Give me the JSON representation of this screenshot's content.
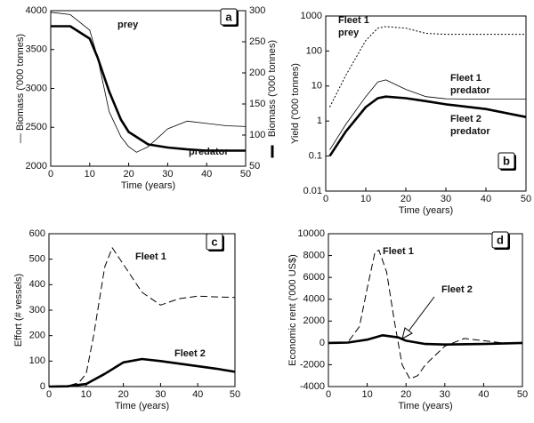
{
  "chart_data": [
    {
      "type": "line",
      "panel_label": "a",
      "x_label": "Time (years)",
      "y_label": "— Biomass ('000 tonnes)",
      "y2_label": "Biomass ('000 tonnes)",
      "xlim": [
        0,
        50
      ],
      "xticks": [
        0,
        10,
        20,
        30,
        40,
        50
      ],
      "ylim": [
        2000,
        4000
      ],
      "yticks": [
        2000,
        2500,
        3000,
        3500,
        4000
      ],
      "y2lim": [
        50,
        300
      ],
      "y2ticks": [
        50,
        100,
        150,
        200,
        250,
        300
      ],
      "log_y": false,
      "annotations": [
        "prey",
        "predator"
      ],
      "series": [
        {
          "name": "prey",
          "color": "#000000",
          "style": "thin",
          "x": [
            0,
            5,
            10,
            12,
            15,
            18,
            20,
            22,
            25,
            30,
            35,
            40,
            45,
            50
          ],
          "values": [
            3980,
            3950,
            3750,
            3400,
            2700,
            2380,
            2250,
            2180,
            2250,
            2480,
            2580,
            2550,
            2520,
            2510
          ]
        },
        {
          "name": "predator",
          "color": "#000000",
          "style": "thick",
          "axis": "y2",
          "x": [
            0,
            5,
            10,
            12,
            15,
            18,
            20,
            25,
            30,
            35,
            40,
            45,
            50
          ],
          "values": [
            275,
            275,
            255,
            225,
            170,
            125,
            105,
            85,
            80,
            77,
            75,
            75,
            75
          ]
        }
      ]
    },
    {
      "type": "line",
      "panel_label": "b",
      "x_label": "Time (years)",
      "y_label": "Yield ('000 tonnes)",
      "xlim": [
        0,
        50
      ],
      "xticks": [
        0,
        10,
        20,
        30,
        40,
        50
      ],
      "ylim": [
        0.01,
        1000
      ],
      "yticks": [
        0.01,
        0.1,
        1,
        10,
        100,
        1000
      ],
      "log_y": true,
      "annotations": [
        "Fleet 1",
        "prey",
        "Fleet 1",
        "predator",
        "Fleet 2",
        "predator"
      ],
      "series": [
        {
          "name": "Fleet 1 prey",
          "color": "#000000",
          "style": "dotted",
          "x": [
            1,
            5,
            10,
            13,
            15,
            20,
            25,
            30,
            40,
            50
          ],
          "values": [
            2.5,
            20,
            200,
            450,
            500,
            450,
            320,
            300,
            300,
            300
          ]
        },
        {
          "name": "Fleet 1 predator",
          "color": "#000000",
          "style": "thin",
          "x": [
            1,
            5,
            10,
            13,
            15,
            20,
            25,
            30,
            40,
            50
          ],
          "values": [
            0.15,
            0.8,
            5,
            13,
            15,
            8,
            5,
            4.3,
            4.2,
            4.2
          ]
        },
        {
          "name": "Fleet 2 predator",
          "color": "#000000",
          "style": "thick",
          "x": [
            1,
            5,
            10,
            13,
            15,
            20,
            25,
            30,
            40,
            50
          ],
          "values": [
            0.1,
            0.5,
            2.5,
            4.5,
            5,
            4.5,
            3.7,
            3,
            2.2,
            1.3
          ]
        }
      ]
    },
    {
      "type": "line",
      "panel_label": "c",
      "x_label": "Time (years)",
      "y_label": "Effort (# vessels)",
      "xlim": [
        0,
        50
      ],
      "xticks": [
        0,
        10,
        20,
        30,
        40,
        50
      ],
      "ylim": [
        0,
        600
      ],
      "yticks": [
        0,
        100,
        200,
        300,
        400,
        500,
        600
      ],
      "log_y": false,
      "annotations": [
        "Fleet 1",
        "Fleet 2"
      ],
      "series": [
        {
          "name": "Fleet 1",
          "color": "#000000",
          "style": "dashed",
          "x": [
            0,
            5,
            8,
            10,
            12,
            15,
            17,
            20,
            25,
            30,
            35,
            40,
            45,
            50
          ],
          "values": [
            0,
            2,
            15,
            50,
            200,
            470,
            545,
            480,
            370,
            320,
            345,
            355,
            352,
            350
          ]
        },
        {
          "name": "Fleet 2",
          "color": "#000000",
          "style": "thick",
          "x": [
            0,
            5,
            10,
            15,
            20,
            25,
            30,
            35,
            40,
            45,
            50
          ],
          "values": [
            0,
            1,
            10,
            50,
            95,
            108,
            100,
            90,
            80,
            70,
            58
          ]
        }
      ]
    },
    {
      "type": "line",
      "panel_label": "d",
      "x_label": "Time (years)",
      "y_label": "Economic rent ('000 US$)",
      "xlim": [
        0,
        50
      ],
      "xticks": [
        0,
        10,
        20,
        30,
        40,
        50
      ],
      "ylim": [
        -4000,
        10000
      ],
      "yticks": [
        -4000,
        -2000,
        0,
        2000,
        4000,
        6000,
        8000,
        10000
      ],
      "log_y": false,
      "annotations": [
        "Fleet 1",
        "Fleet 2"
      ],
      "series": [
        {
          "name": "Fleet 1",
          "color": "#000000",
          "style": "dashed",
          "x": [
            0,
            5,
            8,
            10,
            12,
            13,
            15,
            17,
            19,
            21,
            23,
            25,
            30,
            35,
            40,
            45,
            50
          ],
          "values": [
            0,
            50,
            1500,
            5000,
            8300,
            8500,
            6500,
            2000,
            -2000,
            -3300,
            -3000,
            -2000,
            -300,
            400,
            200,
            0,
            0
          ]
        },
        {
          "name": "Fleet 2",
          "color": "#000000",
          "style": "thick",
          "x": [
            0,
            5,
            10,
            14,
            18,
            20,
            25,
            30,
            40,
            50
          ],
          "values": [
            0,
            30,
            300,
            700,
            500,
            200,
            -100,
            -150,
            -100,
            0
          ]
        }
      ]
    }
  ]
}
